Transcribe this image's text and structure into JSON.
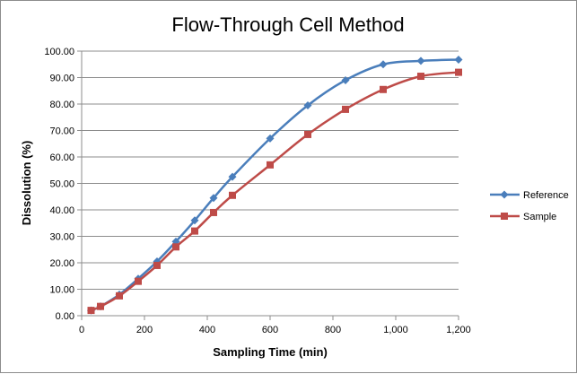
{
  "chart_data": {
    "type": "line",
    "title": "Flow-Through Cell Method",
    "xlabel": "Sampling Time (min)",
    "ylabel": "Dissolution (%)",
    "xlim": [
      0,
      1200
    ],
    "ylim": [
      0,
      100
    ],
    "x_ticks": [
      "0",
      "200",
      "400",
      "600",
      "800",
      "1,000",
      "1,200"
    ],
    "y_ticks": [
      "0.00",
      "10.00",
      "20.00",
      "30.00",
      "40.00",
      "50.00",
      "60.00",
      "70.00",
      "80.00",
      "90.00",
      "100.00"
    ],
    "grid": "horizontal major gridlines",
    "legend_position": "right",
    "smoothed": true,
    "series": [
      {
        "name": "Reference",
        "color": "#4a7ebb",
        "marker": "diamond",
        "x": [
          30,
          60,
          120,
          180,
          240,
          300,
          360,
          420,
          480,
          600,
          720,
          840,
          960,
          1080,
          1200
        ],
        "y": [
          2.0,
          3.5,
          8.0,
          14.0,
          20.5,
          28.0,
          36.0,
          44.5,
          52.5,
          67.0,
          79.5,
          89.0,
          95.0,
          96.3,
          96.8
        ]
      },
      {
        "name": "Sample",
        "color": "#be4b48",
        "marker": "square",
        "x": [
          30,
          60,
          120,
          180,
          240,
          300,
          360,
          420,
          480,
          600,
          720,
          840,
          960,
          1080,
          1200
        ],
        "y": [
          2.0,
          3.5,
          7.5,
          13.0,
          19.0,
          26.0,
          32.0,
          39.0,
          45.5,
          57.0,
          68.5,
          78.0,
          85.5,
          90.5,
          92.0
        ]
      }
    ]
  }
}
